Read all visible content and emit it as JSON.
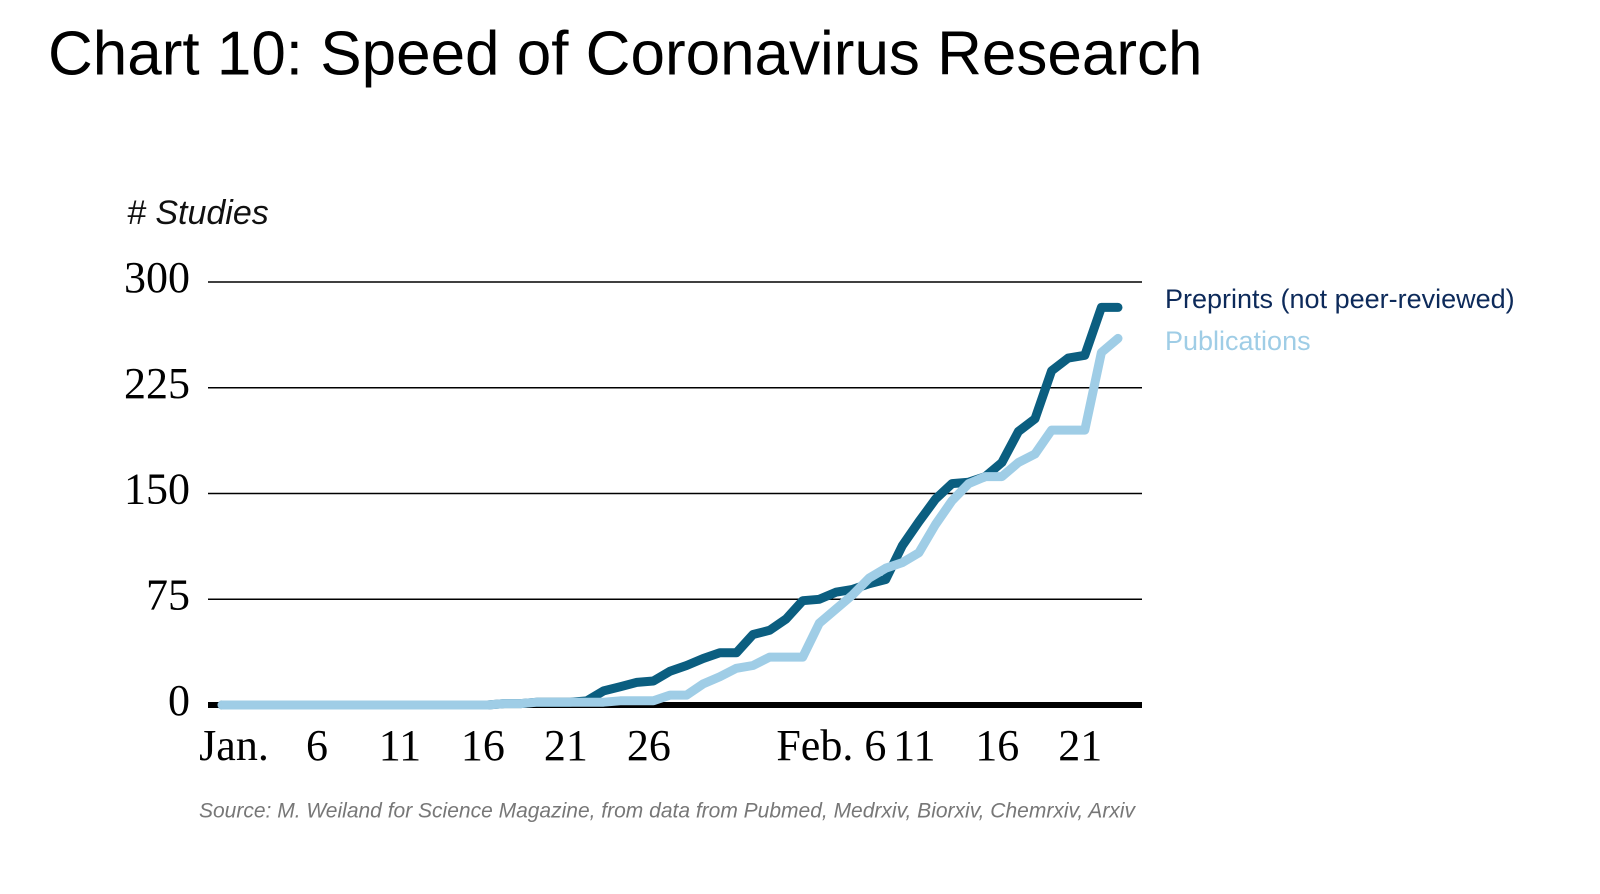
{
  "chart_data": {
    "type": "line",
    "title": "Chart 10: Speed of Coronavirus Research",
    "y_label": "# Studies",
    "source": "Source: M. Weiland for Science Magazine, from data from Pubmed, Medrxiv, Biorxiv, Chemrxiv, Arxiv",
    "categories": [
      "Jan.",
      null,
      null,
      null,
      null,
      "6",
      null,
      null,
      null,
      null,
      "11",
      null,
      null,
      null,
      null,
      "16",
      null,
      null,
      null,
      null,
      "21",
      null,
      null,
      null,
      null,
      "26",
      null,
      null,
      null,
      null,
      null,
      null,
      null,
      null,
      null,
      null,
      "Feb. 6",
      null,
      null,
      null,
      null,
      "11",
      null,
      null,
      null,
      null,
      "16",
      null,
      null,
      null,
      null,
      "21",
      null,
      null,
      null
    ],
    "series": [
      {
        "name": "Preprints (not peer-reviewed)",
        "color": "#0b5e80",
        "values": [
          0,
          0,
          0,
          0,
          0,
          0,
          0,
          0,
          0,
          0,
          0,
          0,
          0,
          0,
          0,
          0,
          0,
          1,
          1,
          2,
          2,
          2,
          3,
          10,
          13,
          16,
          17,
          24,
          28,
          33,
          37,
          37,
          50,
          53,
          61,
          74,
          75,
          80,
          82,
          86,
          89,
          113,
          130,
          146,
          157,
          158,
          162,
          172,
          194,
          203,
          237,
          246,
          248,
          282,
          282
        ]
      },
      {
        "name": "Publications",
        "color": "#9fcde6",
        "values": [
          0,
          0,
          0,
          0,
          0,
          0,
          0,
          0,
          0,
          0,
          0,
          0,
          0,
          0,
          0,
          0,
          0,
          1,
          1,
          2,
          2,
          2,
          2,
          2,
          3,
          3,
          3,
          7,
          7,
          15,
          20,
          26,
          28,
          34,
          34,
          34,
          58,
          68,
          78,
          90,
          97,
          101,
          108,
          128,
          145,
          157,
          162,
          162,
          172,
          178,
          195,
          195,
          195,
          250,
          260
        ]
      }
    ],
    "ylim": [
      0,
      300
    ],
    "yticks": [
      0,
      75,
      150,
      225,
      300
    ],
    "grid": true
  }
}
